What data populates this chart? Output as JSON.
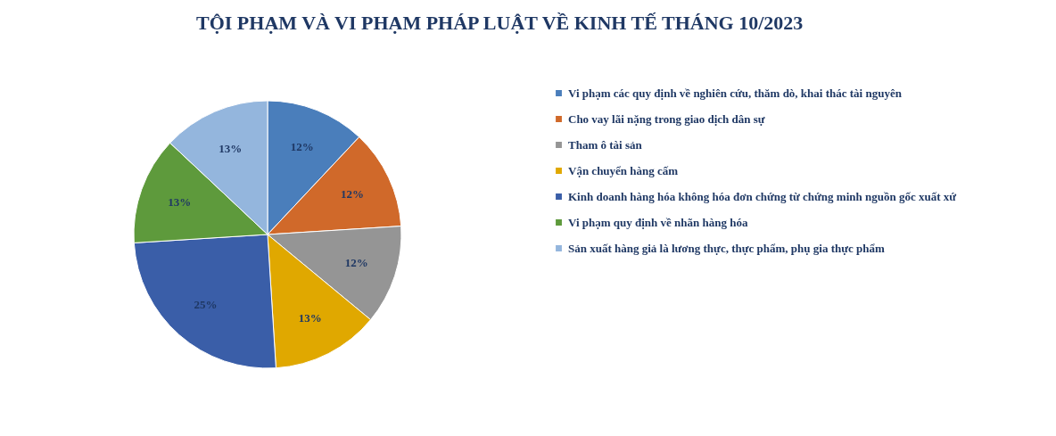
{
  "chart_data": {
    "type": "pie",
    "title": "TỘI PHẠM VÀ VI PHẠM PHÁP LUẬT VỀ KINH TẾ THÁNG 10/2023",
    "categories": [
      "Vi phạm  các quy định  về nghiên cứu, thăm dò, khai thác tài nguyên",
      "Cho vay lãi nặng trong giao dịch dân sự",
      "Tham  ô tài sản",
      "Vận chuyển hàng cấm",
      "Kinh  doanh hàng hóa không hóa đơn chứng từ chứng minh  nguồn  gốc xuất xứ",
      "Vi phạm  quy định  về nhãn hàng hóa",
      "Sản xuất hàng giả là lương thực, thực phẩm,  phụ gia thực phẩm"
    ],
    "values": [
      12,
      12,
      12,
      13,
      25,
      13,
      13
    ],
    "value_labels": [
      "12%",
      "12%",
      "12%",
      "13%",
      "25%",
      "13%",
      "13%"
    ],
    "colors": [
      "#4a7ebb",
      "#d0692a",
      "#959595",
      "#e0a800",
      "#3a5ea8",
      "#5e9a3c",
      "#94b6dd"
    ],
    "legend": "right"
  }
}
